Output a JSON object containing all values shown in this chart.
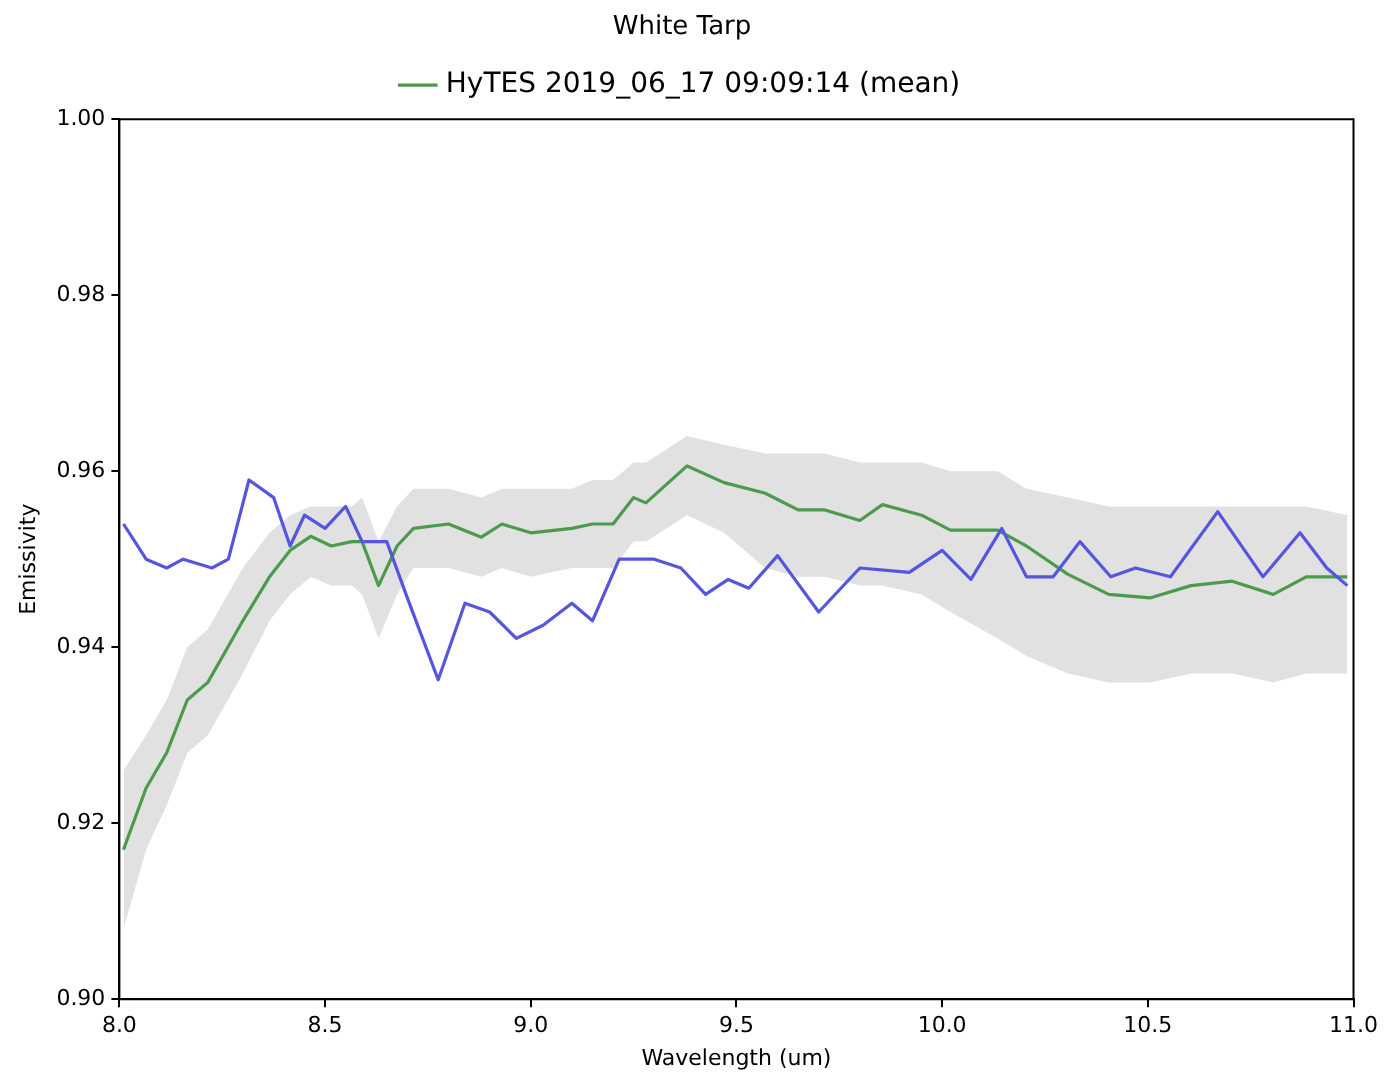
{
  "chart_data": {
    "type": "line",
    "title": "White Tarp",
    "xlabel": "Wavelength (um)",
    "ylabel": "Emissivity",
    "xlim": [
      8.0,
      11.0
    ],
    "xticks": [
      {
        "value": 8.0,
        "label": "8.0"
      },
      {
        "value": 8.5,
        "label": "8.5"
      },
      {
        "value": 9.0,
        "label": "9.0"
      },
      {
        "value": 9.5,
        "label": "9.5"
      },
      {
        "value": 10.0,
        "label": "10.0"
      },
      {
        "value": 10.5,
        "label": "10.5"
      },
      {
        "value": 11.0,
        "label": "11.0"
      }
    ],
    "ylim": [
      0.9,
      1.0
    ],
    "yticks": [
      {
        "value": 0.9,
        "label": "0.90"
      },
      {
        "value": 0.92,
        "label": "0.92"
      },
      {
        "value": 0.94,
        "label": "0.94"
      },
      {
        "value": 0.96,
        "label": "0.96"
      },
      {
        "value": 0.98,
        "label": "0.98"
      },
      {
        "value": 1.0,
        "label": "1.00"
      }
    ],
    "grid": false,
    "legend": "top",
    "marker": "none",
    "line_style": "solid",
    "series": [
      {
        "color": "#5555dd",
        "x": [
          8.01,
          8.065,
          8.115,
          8.155,
          8.225,
          8.265,
          8.315,
          8.375,
          8.415,
          8.45,
          8.5,
          8.55,
          8.59,
          8.65,
          8.7,
          8.775,
          8.84,
          8.9,
          8.965,
          9.03,
          9.1,
          9.15,
          9.215,
          9.3,
          9.365,
          9.425,
          9.48,
          9.53,
          9.6,
          9.7,
          9.8,
          9.92,
          10.0,
          10.07,
          10.145,
          10.205,
          10.27,
          10.335,
          10.41,
          10.47,
          10.555,
          10.67,
          10.78,
          10.87,
          10.935,
          10.985
        ],
        "values": [
          0.954,
          0.95,
          0.949,
          0.95,
          0.949,
          0.95,
          0.959,
          0.957,
          0.9515,
          0.955,
          0.9535,
          0.956,
          0.952,
          0.952,
          0.9456,
          0.9363,
          0.945,
          0.944,
          0.941,
          0.9425,
          0.945,
          0.943,
          0.95,
          0.95,
          0.949,
          0.946,
          0.9477,
          0.9467,
          0.9504,
          0.944,
          0.949,
          0.9485,
          0.951,
          0.9477,
          0.9535,
          0.948,
          0.948,
          0.952,
          0.948,
          0.949,
          0.948,
          0.9554,
          0.948,
          0.953,
          0.949,
          0.947
        ]
      },
      {
        "name": "HyTES 2019_06_17 09:09:14 (mean)",
        "color": "#4c9a4c",
        "x": [
          8.01,
          8.065,
          8.115,
          8.165,
          8.215,
          8.3,
          8.365,
          8.415,
          8.465,
          8.515,
          8.565,
          8.59,
          8.63,
          8.675,
          8.715,
          8.8,
          8.88,
          8.93,
          9.0,
          9.1,
          9.15,
          9.2,
          9.25,
          9.28,
          9.38,
          9.47,
          9.57,
          9.65,
          9.715,
          9.8,
          9.855,
          9.95,
          10.02,
          10.135,
          10.205,
          10.305,
          10.405,
          10.505,
          10.605,
          10.705,
          10.805,
          10.885,
          10.985
        ],
        "values": [
          0.917,
          0.924,
          0.928,
          0.934,
          0.936,
          0.943,
          0.948,
          0.951,
          0.9526,
          0.9515,
          0.952,
          0.952,
          0.947,
          0.9515,
          0.9535,
          0.954,
          0.9525,
          0.954,
          0.953,
          0.9535,
          0.954,
          0.954,
          0.957,
          0.9564,
          0.9606,
          0.9587,
          0.9575,
          0.9556,
          0.9556,
          0.9544,
          0.9562,
          0.955,
          0.9533,
          0.9533,
          0.9515,
          0.9483,
          0.946,
          0.9456,
          0.947,
          0.9475,
          0.946,
          0.948,
          0.948
        ],
        "lower": [
          0.908,
          0.917,
          0.922,
          0.928,
          0.93,
          0.937,
          0.943,
          0.946,
          0.948,
          0.947,
          0.947,
          0.946,
          0.941,
          0.946,
          0.949,
          0.949,
          0.948,
          0.949,
          0.948,
          0.949,
          0.949,
          0.949,
          0.952,
          0.952,
          0.955,
          0.953,
          0.949,
          0.948,
          0.948,
          0.947,
          0.947,
          0.946,
          0.944,
          0.941,
          0.939,
          0.937,
          0.936,
          0.936,
          0.937,
          0.937,
          0.936,
          0.937,
          0.937
        ],
        "upper": [
          0.926,
          0.93,
          0.934,
          0.94,
          0.942,
          0.949,
          0.953,
          0.955,
          0.956,
          0.956,
          0.956,
          0.957,
          0.952,
          0.956,
          0.958,
          0.958,
          0.957,
          0.958,
          0.958,
          0.958,
          0.959,
          0.959,
          0.961,
          0.961,
          0.964,
          0.963,
          0.962,
          0.962,
          0.962,
          0.961,
          0.961,
          0.961,
          0.96,
          0.96,
          0.958,
          0.957,
          0.956,
          0.956,
          0.956,
          0.956,
          0.956,
          0.956,
          0.955
        ]
      }
    ]
  }
}
